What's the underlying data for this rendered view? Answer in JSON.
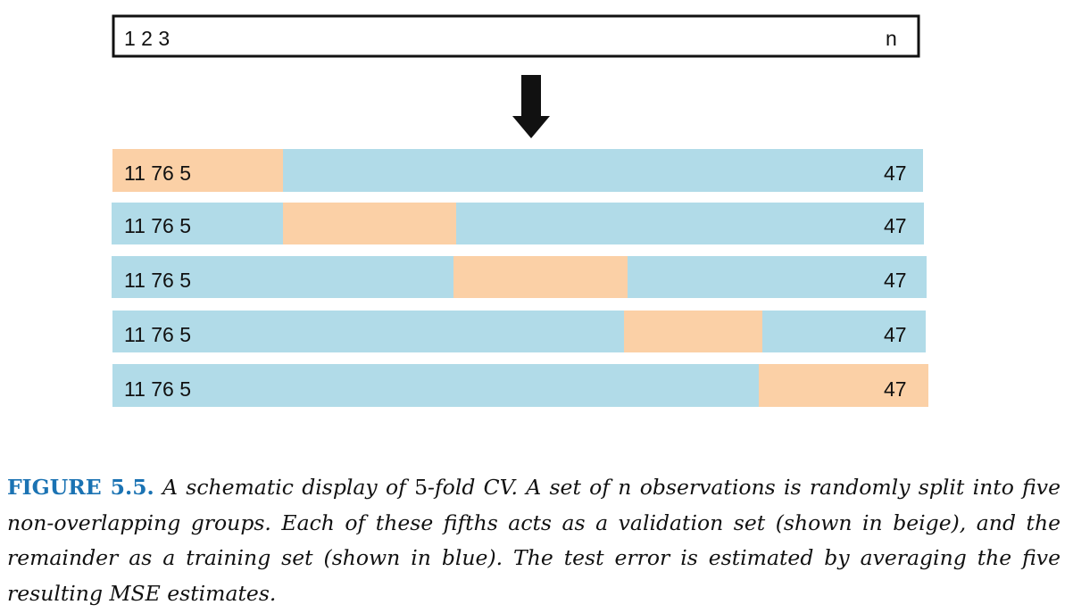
{
  "top_bar": {
    "left_label": "1 2 3",
    "right_label": "n"
  },
  "folds": [
    {
      "left_label": "11 76 5",
      "right_label": "47",
      "validation_fold": 1
    },
    {
      "left_label": "11 76 5",
      "right_label": "47",
      "validation_fold": 2
    },
    {
      "left_label": "11 76 5",
      "right_label": "47",
      "validation_fold": 3
    },
    {
      "left_label": "11 76 5",
      "right_label": "47",
      "validation_fold": 4
    },
    {
      "left_label": "11 76 5",
      "right_label": "47",
      "validation_fold": 5
    }
  ],
  "colors": {
    "validation": "#fbd0a6",
    "training": "#b1dbe8",
    "arrow": "#111111",
    "outline": "#111111",
    "caption_label": "#1b73b3"
  },
  "caption": {
    "label": "FIGURE 5.5.",
    "part1": "A schematic display of ",
    "num5": "5",
    "part2": "-fold CV. A set of ",
    "var_n": "n",
    "part3": " observations is randomly split into five non-overlapping groups. Each of these fifths acts as a validation set (shown in beige), and the remainder as a training set (shown in blue). The test error is estimated by averaging the five resulting MSE estimates."
  }
}
